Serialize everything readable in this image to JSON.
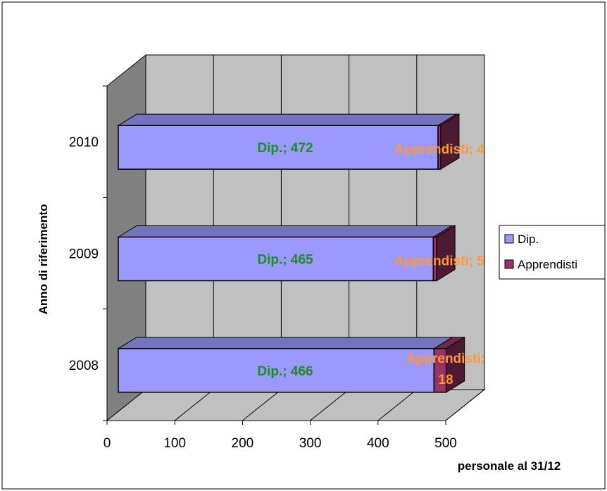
{
  "chart_data": {
    "type": "bar",
    "orientation": "horizontal",
    "stacked": true,
    "style": "3d",
    "categories": [
      "2010",
      "2009",
      "2008"
    ],
    "series": [
      {
        "name": "Dip.",
        "values": [
          472,
          465,
          466
        ],
        "color": "#9999ff"
      },
      {
        "name": "Apprendisti",
        "values": [
          4,
          5,
          18
        ],
        "color": "#993366"
      }
    ],
    "data_labels": [
      [
        "Dip.; 472",
        "Dip.; 465",
        "Dip.; 466"
      ],
      [
        "Apprendisti; 4",
        "Apprendisti; 5",
        "Apprendisti; 18"
      ]
    ],
    "xlabel": "personale al 31/12",
    "ylabel": "Anno di riferimento",
    "xlim": [
      0,
      500
    ],
    "xticks": [
      "0",
      "100",
      "200",
      "300",
      "400",
      "500"
    ],
    "grid": true,
    "legend": "right",
    "colors": {
      "dip_label": "#1e8c1e",
      "appr_label": "#ff9933",
      "wall": "#c0c0c0",
      "side_wall": "#808080",
      "floor": "#c0c0c0"
    }
  }
}
